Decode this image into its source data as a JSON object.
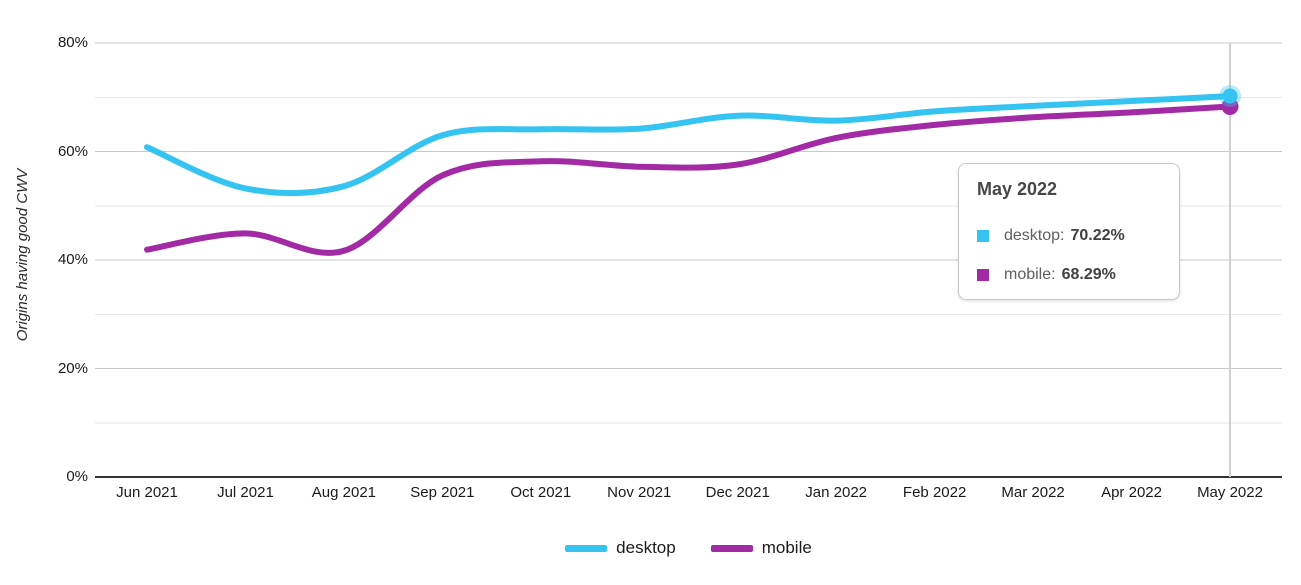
{
  "chart_data": {
    "type": "line",
    "title": "",
    "xlabel": "",
    "ylabel": "Origins having good CWV",
    "categories": [
      "Jun 2021",
      "Jul 2021",
      "Aug 2021",
      "Sep 2021",
      "Oct 2021",
      "Nov 2021",
      "Dec 2021",
      "Jan 2022",
      "Feb 2022",
      "Mar 2022",
      "Apr 2022",
      "May 2022"
    ],
    "series": [
      {
        "name": "desktop",
        "color": "#35c3f1",
        "values": [
          60.8,
          53.2,
          53.6,
          63.0,
          64.1,
          64.2,
          66.6,
          65.7,
          67.4,
          68.4,
          69.3,
          70.22
        ]
      },
      {
        "name": "mobile",
        "color": "#a32aa5",
        "values": [
          41.9,
          44.9,
          41.7,
          55.6,
          58.2,
          57.2,
          57.6,
          62.5,
          64.9,
          66.3,
          67.2,
          68.29
        ]
      }
    ],
    "ylim": [
      0,
      80
    ],
    "y_tick_values": [
      0,
      20,
      40,
      60,
      80
    ],
    "y_tick_labels": [
      "0%",
      "20%",
      "40%",
      "60%",
      "80%"
    ],
    "y_minor_tick_values": [
      10,
      30,
      50,
      70
    ],
    "grid": true,
    "legend_position": "bottom",
    "highlighted_x": "May 2022"
  },
  "tooltip": {
    "title": "May 2022",
    "rows": [
      {
        "label": "desktop:",
        "value": "70.22%",
        "color": "#35c3f1"
      },
      {
        "label": "mobile:",
        "value": "68.29%",
        "color": "#a32aa5"
      }
    ]
  },
  "legend": {
    "items": [
      {
        "label": "desktop",
        "color": "#35c3f1"
      },
      {
        "label": "mobile",
        "color": "#a32aa5"
      }
    ]
  }
}
